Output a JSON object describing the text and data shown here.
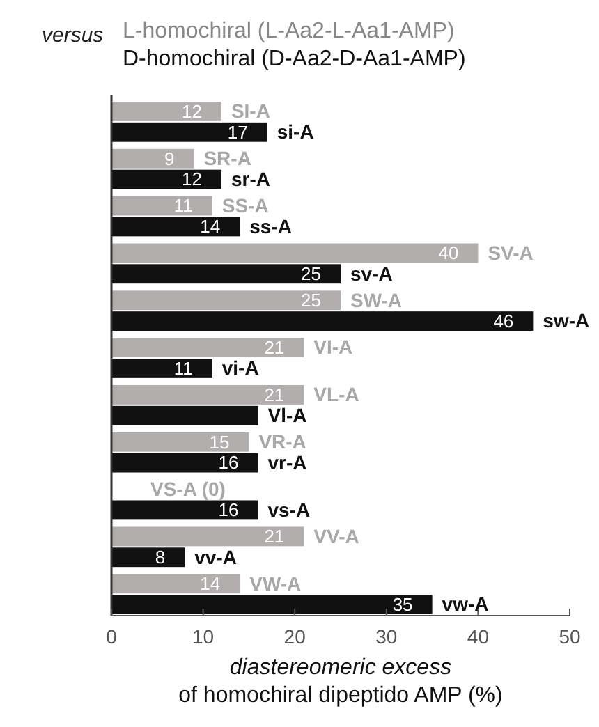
{
  "chart_data": {
    "type": "bar",
    "orientation": "horizontal",
    "title": "versus",
    "categories": [
      null,
      null,
      null,
      null,
      null,
      null,
      null,
      null,
      null,
      null,
      null
    ],
    "series": [
      {
        "name": "L-homochiral (L-Aa2-L-Aa1-AMP)",
        "color": "#b2aeae",
        "values": [
          12,
          9,
          11,
          40,
          25,
          21,
          21,
          15,
          0,
          21,
          14
        ],
        "value_labels": [
          "12",
          "9",
          "11",
          "40",
          "25",
          "21",
          "21",
          "15",
          null,
          "21",
          "14"
        ]
      },
      {
        "name": "D-homochiral (D-Aa2-D-Aa1-AMP)",
        "color": "#111111",
        "values": [
          17,
          12,
          14,
          25,
          46,
          11,
          16,
          16,
          16,
          8,
          35
        ],
        "value_labels": [
          "17",
          "12",
          "14",
          "25",
          "46",
          "11",
          null,
          "16",
          "16",
          "8",
          "35"
        ]
      }
    ],
    "annotations": [
      "SI-A",
      "si-A",
      "SR-A",
      "sr-A",
      "SS-A",
      "ss-A",
      "SV-A",
      "sv-A",
      "SW-A",
      "sw-A",
      "VI-A",
      "vi-A",
      "VL-A",
      "Vl-A",
      "VR-A",
      "vr-A",
      "VS-A (0)",
      "vs-A",
      "VV-A",
      "vv-A",
      "VW-A",
      "vw-A"
    ],
    "xlabel": "diastereomeric excess\nof homochiral dipeptido AMP (%)",
    "xlim": [
      0,
      50
    ],
    "xticks": [
      0,
      10,
      20,
      30,
      40,
      50
    ],
    "legend": "top left",
    "grid": false
  }
}
